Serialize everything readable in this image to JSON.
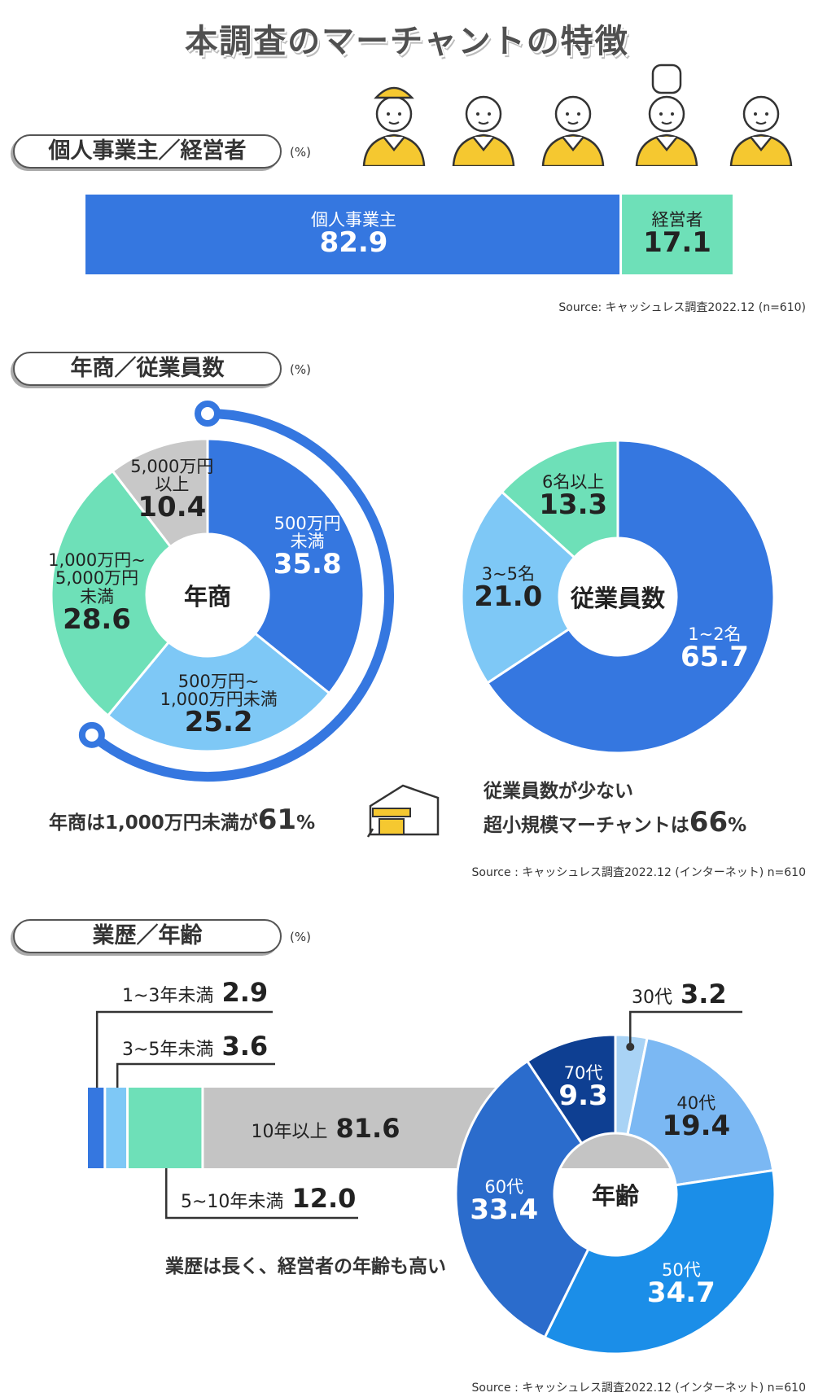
{
  "title": "本調査のマーチャントの特徴",
  "sections": [
    {
      "label": "個人事業主／経営者",
      "unit": "(%)",
      "source": "Source: キャッシュレス調査2022.12 (n=610)"
    },
    {
      "label": "年商／従業員数",
      "unit": "(%)",
      "source": "Source : キャッシュレス調査2022.12 (インターネット) n=610"
    },
    {
      "label": "業歴／年齢",
      "unit": "(%)",
      "source": "Source : キャッシュレス調査2022.12 (インターネット) n=610"
    }
  ],
  "chart_data": [
    {
      "type": "stacked-bar",
      "categories": [
        "個人事業主",
        "経営者"
      ],
      "values": [
        82.9,
        17.1
      ],
      "colors": [
        "#3577e0",
        "#6ee0b8"
      ]
    },
    {
      "type": "donut",
      "center_label": "年商",
      "categories": [
        "500万円\n未満",
        "500万円~\n1,000万円未満",
        "1,000万円~\n5,000万円\n未満",
        "5,000万円\n以上"
      ],
      "values": [
        35.8,
        25.2,
        28.6,
        10.4
      ],
      "colors": [
        "#3577e0",
        "#7ec8f6",
        "#6ee0b8",
        "#c8c8c8"
      ],
      "annotation": [
        "年商は1,000万円未満が",
        "61",
        "%"
      ]
    },
    {
      "type": "donut",
      "center_label": "従業員数",
      "categories": [
        "1~2名",
        "3~5名",
        "6名以上"
      ],
      "values": [
        65.7,
        21,
        13.3
      ],
      "value_labels": [
        "65.7",
        "21.0",
        "13.3"
      ],
      "colors": [
        "#3577e0",
        "#7ec8f6",
        "#6ee0b8"
      ],
      "annotation": [
        "従業員数が少ない",
        "超小規模マーチャントは",
        "66",
        "%"
      ]
    },
    {
      "type": "stacked-bar",
      "categories": [
        "1~3年未満",
        "3~5年未満",
        "5~10年未満",
        "10年以上"
      ],
      "values": [
        2.9,
        3.6,
        12,
        81.6
      ],
      "value_labels": [
        "2.9",
        "3.6",
        "12.0",
        "81.6"
      ],
      "colors": [
        "#3577e0",
        "#7ec8f6",
        "#6ee0b8",
        "#c4c4c4"
      ],
      "annotation": [
        "業歴は長く、経営者の年齢も高い"
      ]
    },
    {
      "type": "donut",
      "center_label": "年齢",
      "categories": [
        "30代",
        "40代",
        "50代",
        "60代",
        "70代"
      ],
      "values": [
        3.2,
        19.4,
        34.7,
        33.4,
        9.3
      ],
      "colors": [
        "#a9d3f5",
        "#7bb8f3",
        "#1b8ee8",
        "#2b6ccc",
        "#0e3f92"
      ]
    }
  ]
}
